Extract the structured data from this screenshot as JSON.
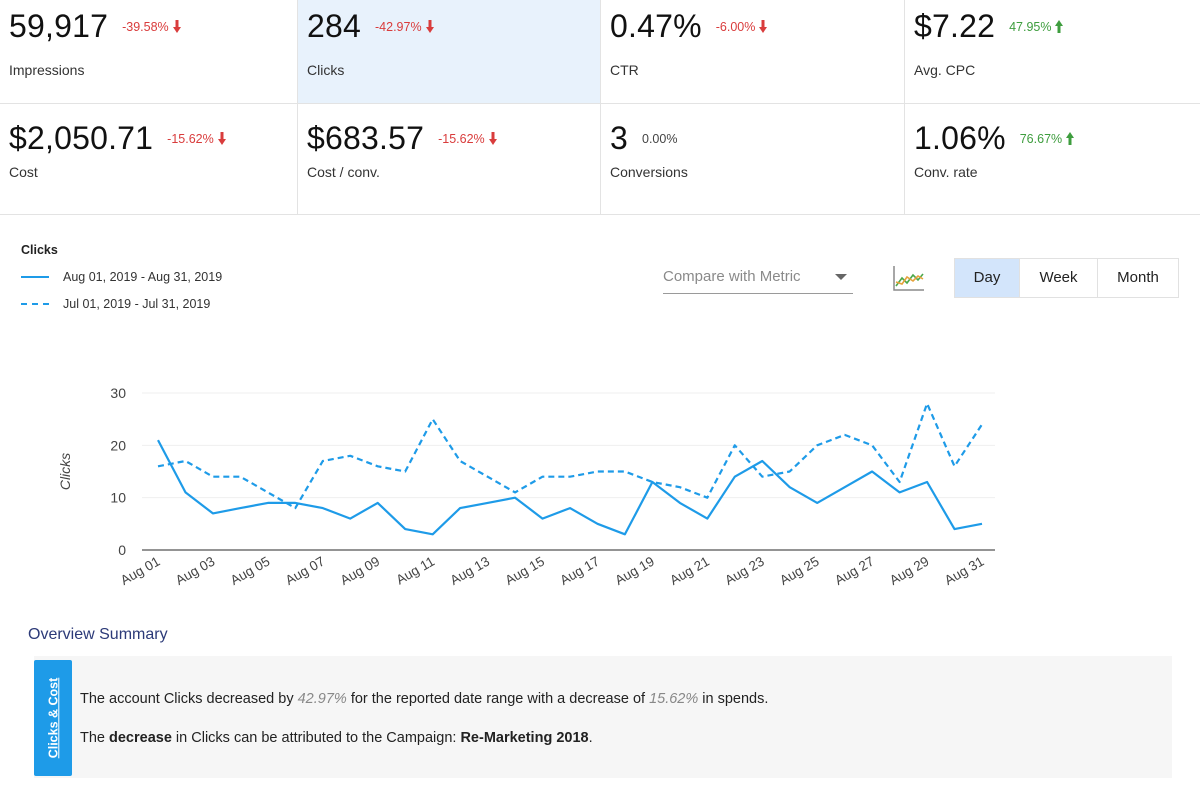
{
  "kpis": [
    {
      "value": "59,917",
      "change": "-39.58%",
      "direction": "down",
      "label": "Impressions"
    },
    {
      "value": "284",
      "change": "-42.97%",
      "direction": "down",
      "label": "Clicks"
    },
    {
      "value": "0.47%",
      "change": "-6.00%",
      "direction": "down",
      "label": "CTR"
    },
    {
      "value": "$7.22",
      "change": "47.95%",
      "direction": "up",
      "label": "Avg. CPC"
    },
    {
      "value": "$2,050.71",
      "change": "-15.62%",
      "direction": "down",
      "label": "Cost"
    },
    {
      "value": "$683.57",
      "change": "-15.62%",
      "direction": "down",
      "label": "Cost / conv."
    },
    {
      "value": "3",
      "change": "0.00%",
      "direction": "flat",
      "label": "Conversions"
    },
    {
      "value": "1.06%",
      "change": "76.67%",
      "direction": "up",
      "label": "Conv. rate"
    }
  ],
  "colors": {
    "down": "#d93c3c",
    "up": "#3e9d3e",
    "series": "#1e9be8",
    "accent": "#1e9be8"
  },
  "legend": {
    "title": "Clicks",
    "series1": "Aug 01, 2019 - Aug 31, 2019",
    "series2": "Jul 01, 2019 - Jul 31, 2019"
  },
  "controls": {
    "compare_placeholder": "Compare with Metric",
    "period_day": "Day",
    "period_week": "Week",
    "period_month": "Month"
  },
  "chart_data": {
    "type": "line",
    "ylabel": "Clicks",
    "xlabel": "",
    "ylim": [
      0,
      30
    ],
    "yticks": [
      0,
      10,
      20,
      30
    ],
    "x": [
      "Aug 01",
      "Aug 02",
      "Aug 03",
      "Aug 04",
      "Aug 05",
      "Aug 06",
      "Aug 07",
      "Aug 08",
      "Aug 09",
      "Aug 10",
      "Aug 11",
      "Aug 12",
      "Aug 13",
      "Aug 14",
      "Aug 15",
      "Aug 16",
      "Aug 17",
      "Aug 18",
      "Aug 19",
      "Aug 20",
      "Aug 21",
      "Aug 22",
      "Aug 23",
      "Aug 24",
      "Aug 25",
      "Aug 26",
      "Aug 27",
      "Aug 28",
      "Aug 29",
      "Aug 30",
      "Aug 31"
    ],
    "xtick_labels": [
      "Aug 01",
      "Aug 03",
      "Aug 05",
      "Aug 07",
      "Aug 09",
      "Aug 11",
      "Aug 13",
      "Aug 15",
      "Aug 17",
      "Aug 19",
      "Aug 21",
      "Aug 23",
      "Aug 25",
      "Aug 27",
      "Aug 29",
      "Aug 31"
    ],
    "series": [
      {
        "name": "Aug 01, 2019 - Aug 31, 2019",
        "style": "solid",
        "values": [
          21,
          11,
          7,
          8,
          9,
          9,
          8,
          6,
          9,
          4,
          3,
          8,
          9,
          10,
          6,
          8,
          5,
          3,
          13,
          9,
          6,
          14,
          17,
          12,
          9,
          12,
          15,
          11,
          13,
          4,
          5
        ]
      },
      {
        "name": "Jul 01, 2019 - Jul 31, 2019",
        "style": "dashed",
        "values": [
          16,
          17,
          14,
          14,
          11,
          8,
          17,
          18,
          16,
          15,
          25,
          17,
          14,
          11,
          14,
          14,
          15,
          15,
          13,
          12,
          10,
          20,
          14,
          15,
          20,
          22,
          20,
          13,
          28,
          16,
          24
        ]
      }
    ]
  },
  "summary": {
    "title": "Overview Summary",
    "tab_label": "Clicks & Cost",
    "line1_a": "The account Clicks decreased by ",
    "line1_pct1": "42.97%",
    "line1_b": " for the reported date range with a decrease of ",
    "line1_pct2": "15.62%",
    "line1_c": " in spends.",
    "line2_a": "The ",
    "line2_bold1": "decrease",
    "line2_b": " in Clicks can be attributed to the Campaign: ",
    "line2_bold2": "Re-Marketing 2018",
    "line2_c": "."
  }
}
